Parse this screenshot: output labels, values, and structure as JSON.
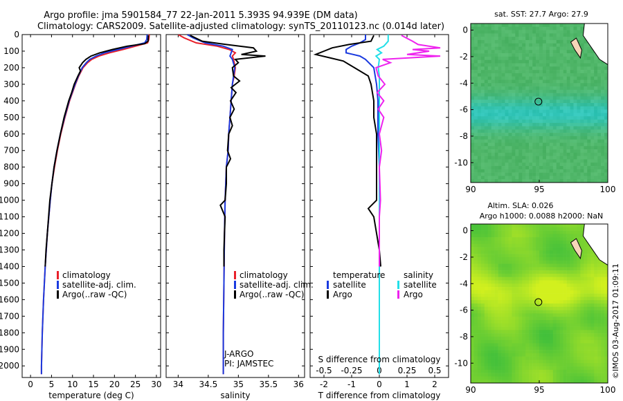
{
  "figure": {
    "title_line1": "Argo profile: jma 5901584_77 22-Jan-2011 5.393S 94.939E (DM data)",
    "title_line2": "Climatology: CARS2009. Satellite-adjusted climatology: synTS_20110123.nc (0.014d later)",
    "credit": "©IMOS 03-Aug-2017 01:09:11"
  },
  "colors": {
    "climatology": "#e8202a",
    "satellite": "#1a3adf",
    "argo": "#000000",
    "s_satellite": "#22dfe8",
    "s_argo": "#ee22ee"
  },
  "chart_data": [
    {
      "type": "line",
      "id": "temperature",
      "xlabel": "temperature (deg C)",
      "ylabel": "",
      "xlim": [
        -2,
        31
      ],
      "ylim": [
        0,
        2070
      ],
      "y_reversed": true,
      "xticks": [
        "0",
        "5",
        "10",
        "15",
        "20",
        "25",
        "30"
      ],
      "yticks": [
        "0",
        "100",
        "200",
        "300",
        "400",
        "500",
        "600",
        "700",
        "800",
        "900",
        "1000",
        "1100",
        "1200",
        "1300",
        "1400",
        "1500",
        "1600",
        "1700",
        "1800",
        "1900",
        "2000"
      ],
      "legend": [
        "climatology",
        "satellite-adj. clim.",
        "Argo(..raw -QC)"
      ],
      "series": [
        {
          "name": "climatology",
          "depth": [
            0,
            30,
            50,
            70,
            90,
            110,
            130,
            150,
            170,
            200,
            250,
            300,
            400,
            500,
            600,
            700,
            800,
            900,
            1000,
            1200,
            1400,
            1600,
            1800,
            2000,
            2050
          ],
          "values": [
            28.3,
            28.2,
            27.9,
            25.0,
            22.0,
            18.8,
            16.3,
            14.6,
            13.6,
            12.5,
            11.5,
            10.7,
            9.3,
            8.2,
            7.2,
            6.4,
            5.7,
            5.1,
            4.7,
            4.0,
            3.5,
            3.1,
            2.8,
            2.6,
            2.6
          ]
        },
        {
          "name": "satellite-adj. clim.",
          "depth": [
            0,
            30,
            50,
            70,
            90,
            110,
            130,
            150,
            170,
            200,
            250,
            300,
            400,
            500,
            600,
            700,
            800,
            900,
            1000,
            1200,
            1400,
            1600,
            1800,
            2000,
            2050
          ],
          "values": [
            27.8,
            27.7,
            27.2,
            24.0,
            20.8,
            17.6,
            15.6,
            14.1,
            13.3,
            12.3,
            11.4,
            10.6,
            9.2,
            8.1,
            7.1,
            6.3,
            5.6,
            5.1,
            4.7,
            4.0,
            3.5,
            3.1,
            2.8,
            2.6,
            2.6
          ]
        },
        {
          "name": "Argo(..raw -QC)",
          "depth": [
            5,
            40,
            55,
            70,
            90,
            110,
            130,
            150,
            170,
            200,
            220,
            250,
            300,
            350,
            400,
            500,
            600,
            700,
            800,
            900,
            1000,
            1100,
            1200,
            1300,
            1400
          ],
          "values": [
            28.1,
            28.0,
            27.2,
            23.0,
            19.5,
            16.5,
            14.4,
            13.2,
            12.4,
            11.6,
            11.9,
            11.3,
            10.4,
            9.8,
            9.1,
            8.0,
            7.1,
            6.3,
            5.6,
            5.1,
            4.6,
            4.3,
            4.0,
            3.7,
            3.5
          ]
        }
      ]
    },
    {
      "type": "line",
      "id": "salinity",
      "xlabel": "salinity",
      "xlim": [
        33.8,
        36.1
      ],
      "ylim": [
        0,
        2070
      ],
      "y_reversed": true,
      "xticks": [
        "34",
        "34.5",
        "35",
        "35.5",
        "36"
      ],
      "legend": [
        "climatology",
        "satellite-adj. clim.",
        "Argo(..raw -QC)"
      ],
      "annotations": [
        "J-ARGO",
        "PI: JAMSTEC"
      ],
      "series": [
        {
          "name": "climatology",
          "depth": [
            0,
            20,
            50,
            70,
            90,
            110,
            130,
            150,
            200,
            250,
            300,
            400,
            500,
            600,
            700,
            800,
            900,
            1000,
            1200,
            1500,
            1800,
            2050
          ],
          "values": [
            34.0,
            34.1,
            34.3,
            34.65,
            34.85,
            34.95,
            34.9,
            34.92,
            34.95,
            34.93,
            34.9,
            34.88,
            34.86,
            34.84,
            34.83,
            34.8,
            34.79,
            34.78,
            34.77,
            34.76,
            34.75,
            34.75
          ]
        },
        {
          "name": "satellite-adj. clim.",
          "depth": [
            0,
            20,
            50,
            70,
            90,
            110,
            130,
            150,
            200,
            250,
            300,
            400,
            500,
            600,
            700,
            800,
            900,
            1000,
            1200,
            1500,
            1800,
            2050
          ],
          "values": [
            34.15,
            34.25,
            34.45,
            34.75,
            34.9,
            34.88,
            34.86,
            34.9,
            34.94,
            34.92,
            34.9,
            34.88,
            34.86,
            34.84,
            34.83,
            34.8,
            34.79,
            34.78,
            34.77,
            34.76,
            34.75,
            34.75
          ]
        },
        {
          "name": "Argo(..raw -QC)",
          "depth": [
            5,
            40,
            60,
            80,
            100,
            120,
            130,
            150,
            170,
            200,
            250,
            280,
            320,
            350,
            400,
            450,
            500,
            550,
            600,
            700,
            750,
            800,
            900,
            1000,
            1030,
            1100,
            1200,
            1300,
            1400
          ],
          "values": [
            34.2,
            34.4,
            34.8,
            35.25,
            35.3,
            35.05,
            35.45,
            34.95,
            35.0,
            34.9,
            34.92,
            35.02,
            34.88,
            34.96,
            34.87,
            34.93,
            34.86,
            34.9,
            34.84,
            34.82,
            34.87,
            34.8,
            34.8,
            34.78,
            34.7,
            34.78,
            34.77,
            34.76,
            34.76
          ]
        }
      ]
    },
    {
      "type": "line",
      "id": "differences",
      "xlabel": "T difference from climatology",
      "x2label": "S difference from climatology",
      "xlim": [
        -2.5,
        2.5
      ],
      "ylim": [
        0,
        2070
      ],
      "y_reversed": true,
      "xticks": [
        "-2",
        "-1",
        "0",
        "1",
        "2"
      ],
      "x2ticks": [
        "-0.5",
        "-0.25",
        "0",
        "0.25",
        "0.5"
      ],
      "legend_temperature": {
        "title": "temperature",
        "items": [
          "satellite",
          "Argo"
        ]
      },
      "legend_salinity": {
        "title": "salinity",
        "items": [
          "satellite",
          "Argo"
        ]
      },
      "series": [
        {
          "name": "T satellite",
          "depth": [
            0,
            30,
            50,
            70,
            90,
            110,
            130,
            150,
            200,
            300,
            400,
            600,
            800,
            1000,
            1400,
            2050
          ],
          "values": [
            -0.5,
            -0.5,
            -0.7,
            -1.0,
            -1.2,
            -1.2,
            -0.7,
            -0.5,
            -0.2,
            -0.1,
            -0.05,
            -0.05,
            0,
            0,
            0,
            0
          ]
        },
        {
          "name": "T Argo",
          "depth": [
            5,
            40,
            60,
            80,
            100,
            120,
            140,
            160,
            180,
            200,
            250,
            300,
            400,
            500,
            600,
            800,
            1000,
            1050,
            1100,
            1200,
            1300,
            1400
          ],
          "values": [
            -0.2,
            -0.3,
            -1.1,
            -1.7,
            -2.0,
            -2.3,
            -1.8,
            -1.3,
            -1.1,
            -0.9,
            -0.4,
            -0.3,
            -0.2,
            -0.2,
            -0.1,
            -0.1,
            -0.1,
            -0.4,
            -0.2,
            -0.1,
            0,
            0.05
          ]
        },
        {
          "name": "S satellite",
          "depth": [
            0,
            40,
            70,
            90,
            110,
            130,
            150,
            200,
            250,
            400,
            600,
            800,
            1000,
            1400,
            2050
          ],
          "values": [
            0.08,
            0.08,
            0.04,
            -0.02,
            0.02,
            -0.03,
            0.0,
            -0.01,
            0.0,
            0.0,
            0.0,
            0.0,
            0.0,
            0.0,
            0.0
          ]
        },
        {
          "name": "S Argo",
          "depth": [
            5,
            40,
            60,
            80,
            90,
            100,
            120,
            130,
            150,
            170,
            200,
            250,
            300,
            350,
            400,
            450,
            500,
            600,
            700,
            800,
            1000,
            1100,
            1400
          ],
          "values": [
            0.2,
            0.3,
            0.35,
            0.55,
            0.3,
            0.45,
            0.25,
            0.55,
            0.03,
            0.1,
            -0.03,
            -0.01,
            0.05,
            -0.02,
            0.04,
            -0.01,
            0.04,
            0.0,
            0.02,
            0.0,
            0.01,
            0.0,
            0.0
          ]
        }
      ]
    },
    {
      "type": "heatmap",
      "id": "sst_map",
      "title": "sat. SST: 27.7 Argo: 27.9",
      "xlim": [
        90,
        100
      ],
      "ylim": [
        -11.5,
        0.5
      ],
      "xticks": [
        "90",
        "95",
        "100"
      ],
      "yticks": [
        "0",
        "-2",
        "-4",
        "-6",
        "-8",
        "-10"
      ],
      "marker": {
        "lon": 94.939,
        "lat": -5.393
      }
    },
    {
      "type": "heatmap",
      "id": "sla_map",
      "title": "Altim. SLA: 0.026",
      "subtitle": "Argo h1000: 0.0088 h2000: NaN",
      "xlim": [
        90,
        100
      ],
      "ylim": [
        -11.5,
        0.5
      ],
      "xticks": [
        "90",
        "95",
        "100"
      ],
      "yticks": [
        "0",
        "-2",
        "-4",
        "-6",
        "-8",
        "-10"
      ],
      "marker": {
        "lon": 94.939,
        "lat": -5.393
      }
    }
  ]
}
